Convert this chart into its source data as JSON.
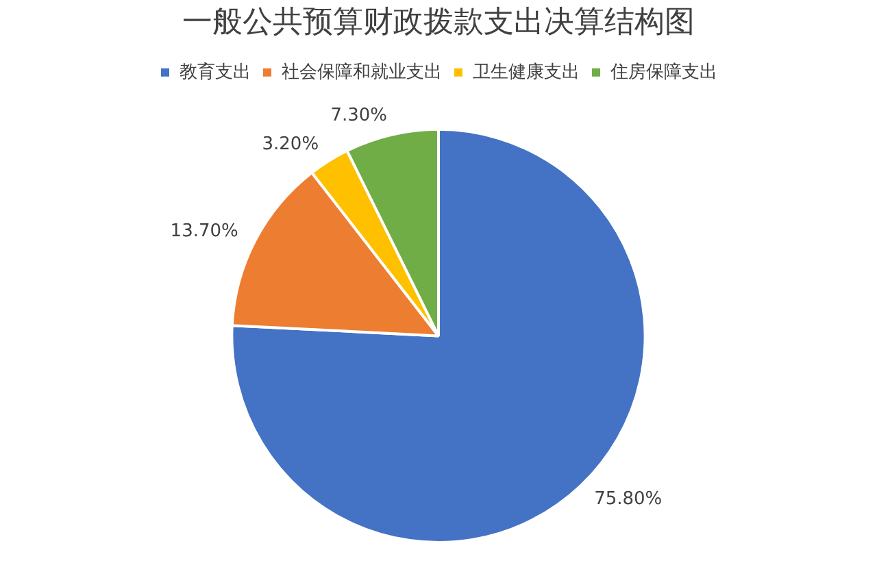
{
  "chart_data": {
    "type": "pie",
    "title": "一般公共预算财政拨款支出决算结构图",
    "categories": [
      "教育支出",
      "社会保障和就业支出",
      "卫生健康支出",
      "住房保障支出"
    ],
    "values": [
      75.8,
      13.7,
      3.2,
      7.3
    ],
    "colors": [
      "#4472c4",
      "#ed7d31",
      "#ffc000",
      "#70ad47"
    ],
    "value_labels": [
      "75.80%",
      "13.70%",
      "3.20%",
      "7.30%"
    ],
    "legend": "top"
  }
}
